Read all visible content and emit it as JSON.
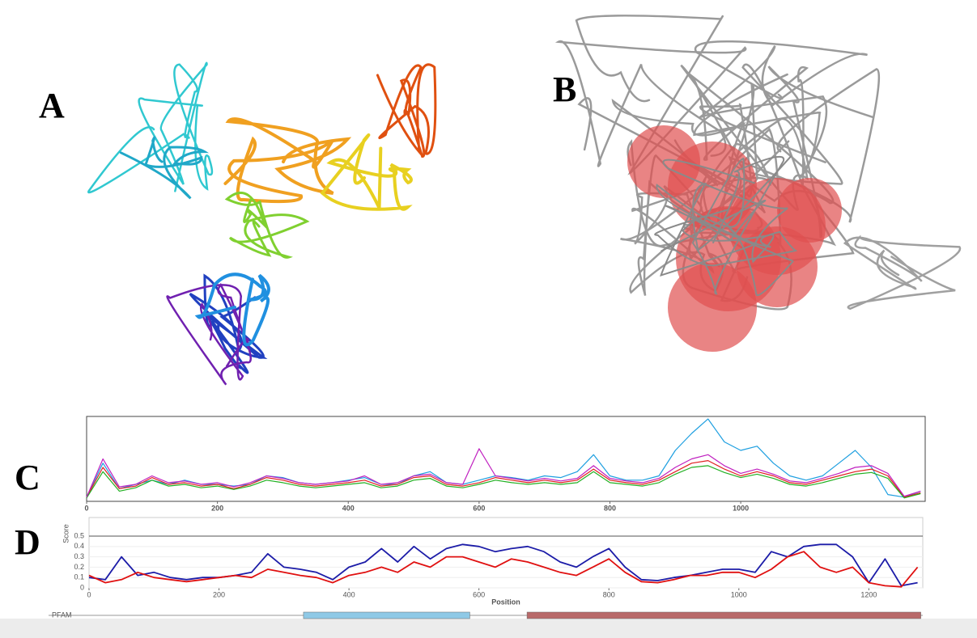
{
  "panel_labels": [
    "A",
    "B",
    "C",
    "D"
  ],
  "chart_data": [
    {
      "type": "line",
      "x": [
        0,
        25,
        50,
        75,
        100,
        125,
        150,
        175,
        200,
        225,
        250,
        275,
        300,
        325,
        350,
        375,
        400,
        425,
        450,
        475,
        500,
        525,
        550,
        575,
        600,
        625,
        650,
        675,
        700,
        725,
        750,
        775,
        800,
        825,
        850,
        875,
        900,
        925,
        950,
        975,
        1000,
        1025,
        1050,
        1075,
        1100,
        1125,
        1150,
        1175,
        1200,
        1225,
        1250,
        1275
      ],
      "xlim": [
        0,
        1282
      ],
      "ylim": [
        0,
        1
      ],
      "xticks": [
        0,
        200,
        400,
        600,
        800,
        1000
      ],
      "series": [
        {
          "color": "#1e9fe0",
          "values": [
            0.05,
            0.45,
            0.15,
            0.2,
            0.25,
            0.2,
            0.25,
            0.2,
            0.2,
            0.18,
            0.2,
            0.3,
            0.28,
            0.22,
            0.2,
            0.22,
            0.25,
            0.28,
            0.2,
            0.2,
            0.3,
            0.35,
            0.22,
            0.2,
            0.25,
            0.3,
            0.28,
            0.25,
            0.3,
            0.28,
            0.35,
            0.55,
            0.3,
            0.25,
            0.25,
            0.3,
            0.6,
            0.8,
            0.97,
            0.7,
            0.6,
            0.65,
            0.45,
            0.3,
            0.25,
            0.3,
            0.45,
            0.6,
            0.4,
            0.08,
            0.05,
            0.12
          ]
        },
        {
          "color": "#e02020",
          "values": [
            0.05,
            0.4,
            0.15,
            0.18,
            0.28,
            0.2,
            0.22,
            0.18,
            0.2,
            0.15,
            0.2,
            0.28,
            0.25,
            0.2,
            0.18,
            0.2,
            0.22,
            0.25,
            0.18,
            0.2,
            0.28,
            0.3,
            0.2,
            0.18,
            0.22,
            0.28,
            0.25,
            0.22,
            0.25,
            0.22,
            0.25,
            0.38,
            0.25,
            0.22,
            0.2,
            0.25,
            0.35,
            0.45,
            0.48,
            0.38,
            0.3,
            0.35,
            0.3,
            0.22,
            0.2,
            0.25,
            0.3,
            0.35,
            0.38,
            0.3,
            0.05,
            0.1
          ]
        },
        {
          "color": "#22b022",
          "values": [
            0.04,
            0.35,
            0.12,
            0.16,
            0.25,
            0.18,
            0.2,
            0.16,
            0.18,
            0.14,
            0.18,
            0.25,
            0.22,
            0.18,
            0.16,
            0.18,
            0.2,
            0.22,
            0.16,
            0.18,
            0.25,
            0.27,
            0.18,
            0.16,
            0.2,
            0.25,
            0.22,
            0.2,
            0.22,
            0.2,
            0.22,
            0.35,
            0.22,
            0.2,
            0.18,
            0.22,
            0.32,
            0.4,
            0.42,
            0.34,
            0.28,
            0.32,
            0.27,
            0.2,
            0.18,
            0.22,
            0.27,
            0.32,
            0.34,
            0.27,
            0.04,
            0.09
          ]
        },
        {
          "color": "#c020c0",
          "values": [
            0.05,
            0.5,
            0.17,
            0.2,
            0.3,
            0.22,
            0.24,
            0.2,
            0.22,
            0.17,
            0.22,
            0.3,
            0.27,
            0.22,
            0.2,
            0.22,
            0.24,
            0.3,
            0.2,
            0.22,
            0.3,
            0.32,
            0.22,
            0.2,
            0.62,
            0.3,
            0.27,
            0.24,
            0.27,
            0.24,
            0.27,
            0.42,
            0.27,
            0.24,
            0.22,
            0.27,
            0.4,
            0.5,
            0.55,
            0.42,
            0.33,
            0.38,
            0.32,
            0.24,
            0.22,
            0.27,
            0.33,
            0.4,
            0.42,
            0.33,
            0.06,
            0.12
          ]
        }
      ]
    },
    {
      "type": "line",
      "x": [
        0,
        25,
        50,
        75,
        100,
        125,
        150,
        175,
        200,
        225,
        250,
        275,
        300,
        325,
        350,
        375,
        400,
        425,
        450,
        475,
        500,
        525,
        550,
        575,
        600,
        625,
        650,
        675,
        700,
        725,
        750,
        775,
        800,
        825,
        850,
        875,
        900,
        925,
        950,
        975,
        1000,
        1025,
        1050,
        1075,
        1100,
        1125,
        1150,
        1175,
        1200,
        1225,
        1250,
        1275
      ],
      "xlim": [
        0,
        1283
      ],
      "ylim": [
        0,
        0.68
      ],
      "xticks": [
        0,
        200,
        400,
        600,
        800,
        1000,
        1200
      ],
      "yticks": [
        0,
        0.1,
        0.2,
        0.3,
        0.4,
        0.5
      ],
      "xlabel": "Position",
      "ylabel": "Score",
      "threshold": 0.5,
      "series": [
        {
          "color": "#1c1ca8",
          "values": [
            0.1,
            0.08,
            0.3,
            0.12,
            0.15,
            0.1,
            0.08,
            0.1,
            0.1,
            0.12,
            0.15,
            0.33,
            0.2,
            0.18,
            0.15,
            0.08,
            0.2,
            0.25,
            0.38,
            0.25,
            0.4,
            0.28,
            0.38,
            0.42,
            0.4,
            0.35,
            0.38,
            0.4,
            0.35,
            0.25,
            0.2,
            0.3,
            0.38,
            0.2,
            0.08,
            0.07,
            0.1,
            0.12,
            0.15,
            0.18,
            0.18,
            0.15,
            0.35,
            0.3,
            0.4,
            0.42,
            0.42,
            0.3,
            0.05,
            0.28,
            0.02,
            0.05
          ]
        },
        {
          "color": "#e01010",
          "values": [
            0.12,
            0.05,
            0.08,
            0.15,
            0.1,
            0.08,
            0.06,
            0.08,
            0.1,
            0.12,
            0.1,
            0.18,
            0.15,
            0.12,
            0.1,
            0.05,
            0.12,
            0.15,
            0.2,
            0.15,
            0.25,
            0.2,
            0.3,
            0.3,
            0.25,
            0.2,
            0.28,
            0.25,
            0.2,
            0.15,
            0.12,
            0.2,
            0.28,
            0.15,
            0.06,
            0.05,
            0.08,
            0.12,
            0.12,
            0.15,
            0.15,
            0.1,
            0.18,
            0.3,
            0.35,
            0.2,
            0.15,
            0.2,
            0.05,
            0.02,
            0.01,
            0.2
          ]
        }
      ],
      "track": {
        "label": "PFAM",
        "domains": [
          {
            "start": 330,
            "end": 586,
            "color": "#8fc9e6"
          },
          {
            "start": 674,
            "end": 1280,
            "color": "#b86a6a"
          }
        ]
      }
    }
  ]
}
